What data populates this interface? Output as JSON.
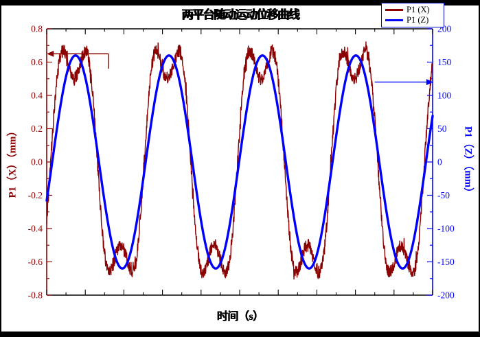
{
  "title": "两平台随动运动位移曲线",
  "legend": {
    "border_color": "#0000CD",
    "items": [
      {
        "label": "P1 (X)",
        "color": "#8B0000"
      },
      {
        "label": "P1 (Z)",
        "color": "#0000FF"
      }
    ]
  },
  "chart_data": {
    "type": "line",
    "title": "两平台随动运动位移曲线",
    "x_axis": {
      "label": "时间（s）",
      "range": [
        0,
        1
      ],
      "major_ticks": 11,
      "tick_labels_visible": false
    },
    "y_left": {
      "label": "P1（X）（mm）",
      "color": "#8B0000",
      "min": -0.8,
      "max": 0.8,
      "tick_step": 0.2,
      "minor_step": 0.1,
      "ticks": [
        "0.8",
        "0.6",
        "0.4",
        "0.2",
        "0.0",
        "-0.2",
        "-0.4",
        "-0.6",
        "-0.8"
      ]
    },
    "y_right": {
      "label": "P1（Z）（mm）",
      "color": "#0000FF",
      "min": -200,
      "max": 200,
      "tick_step": 50,
      "minor_step": 25,
      "ticks": [
        "200",
        "150",
        "100",
        "50",
        "0",
        "-50",
        "-100",
        "-150",
        "-200"
      ]
    },
    "series": [
      {
        "name": "P1 (X)",
        "axis": "left",
        "color": "#8B0000",
        "line_width": 1.4,
        "waveform": {
          "type": "noisy_sine_with_3rd_harmonic",
          "fundamental_amplitude_mm": 0.72,
          "third_harmonic_amplitude_mm": 0.22,
          "peak_mm": 0.66,
          "trough_mm": -0.66,
          "cycles_visible": 4.13,
          "phase_rad": -0.27,
          "noise_amplitude_mm": 0.04
        }
      },
      {
        "name": "P1 (Z)",
        "axis": "right",
        "color": "#0000FF",
        "line_width": 3.4,
        "waveform": {
          "type": "sine",
          "amplitude_mm": 160,
          "peak_mm": 160,
          "trough_mm": -160,
          "cycles_visible": 4.13,
          "phase_rad": -0.37
        }
      }
    ],
    "annotations": [
      {
        "name": "p1x-peak-arrow",
        "color": "#8B0000",
        "axis": "left",
        "y_value": 0.65,
        "x_from": 0.004,
        "x_to": 0.16,
        "arrow_at": "start",
        "drop_to": 0.56
      },
      {
        "name": "p1z-level-arrow",
        "color": "#0000FF",
        "axis": "right",
        "y_value": 120,
        "x_from": 0.85,
        "x_to": 0.998,
        "arrow_at": "end"
      }
    ]
  }
}
